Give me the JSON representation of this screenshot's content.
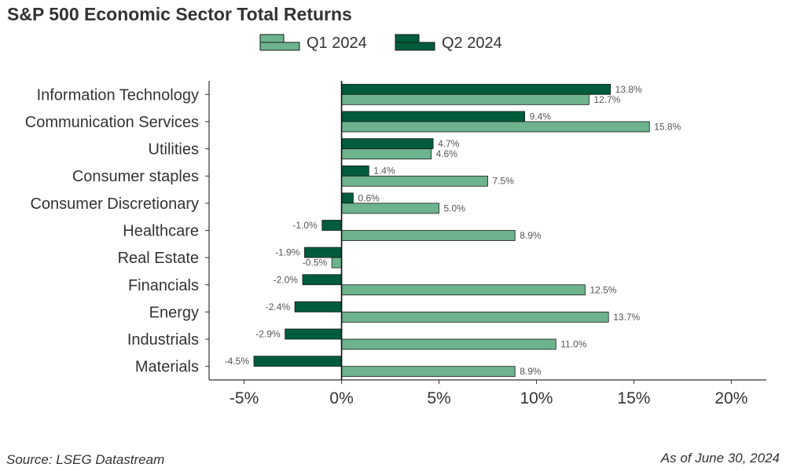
{
  "title": "S&P 500 Economic Sector Total Returns",
  "source_note": "Source: LSEG Datastream",
  "date_note": "As of June 30, 2024",
  "colors": {
    "q1": "#6db38e",
    "q2": "#005c3c",
    "outline": "#1a1a1a",
    "axis": "#333333"
  },
  "chart_data": {
    "type": "bar",
    "orientation": "horizontal",
    "title": "S&P 500 Economic Sector Total Returns",
    "categories": [
      "Information Technology",
      "Communication Services",
      "Utilities",
      "Consumer staples",
      "Consumer Discretionary",
      "Healthcare",
      "Real Estate",
      "Financials",
      "Energy",
      "Industrials",
      "Materials"
    ],
    "series": [
      {
        "name": "Q1 2024",
        "values": [
          12.7,
          15.8,
          4.6,
          7.5,
          5.0,
          8.9,
          -0.5,
          12.5,
          13.7,
          11.0,
          8.9
        ],
        "labels": [
          "12.7%",
          "15.8%",
          "4.6%",
          "7.5%",
          "5.0%",
          "8.9%",
          "-0.5%",
          "12.5%",
          "13.7%",
          "11.0%",
          "8.9%"
        ]
      },
      {
        "name": "Q2 2024",
        "values": [
          13.8,
          9.4,
          4.7,
          1.4,
          0.6,
          -1.0,
          -1.9,
          -2.0,
          -2.4,
          -2.9,
          -4.5
        ],
        "labels": [
          "13.8%",
          "9.4%",
          "4.7%",
          "1.4%",
          "0.6%",
          "-1.0%",
          "-1.9%",
          "-2.0%",
          "-2.4%",
          "-2.9%",
          "-4.5%"
        ]
      }
    ],
    "xlim": [
      -6.8,
      21.8
    ],
    "xticks": [
      -5,
      0,
      5,
      10,
      15,
      20
    ],
    "xtick_labels": [
      "-5%",
      "0%",
      "5%",
      "10%",
      "15%",
      "20%"
    ],
    "grid": false,
    "legend_position": "top-center"
  }
}
